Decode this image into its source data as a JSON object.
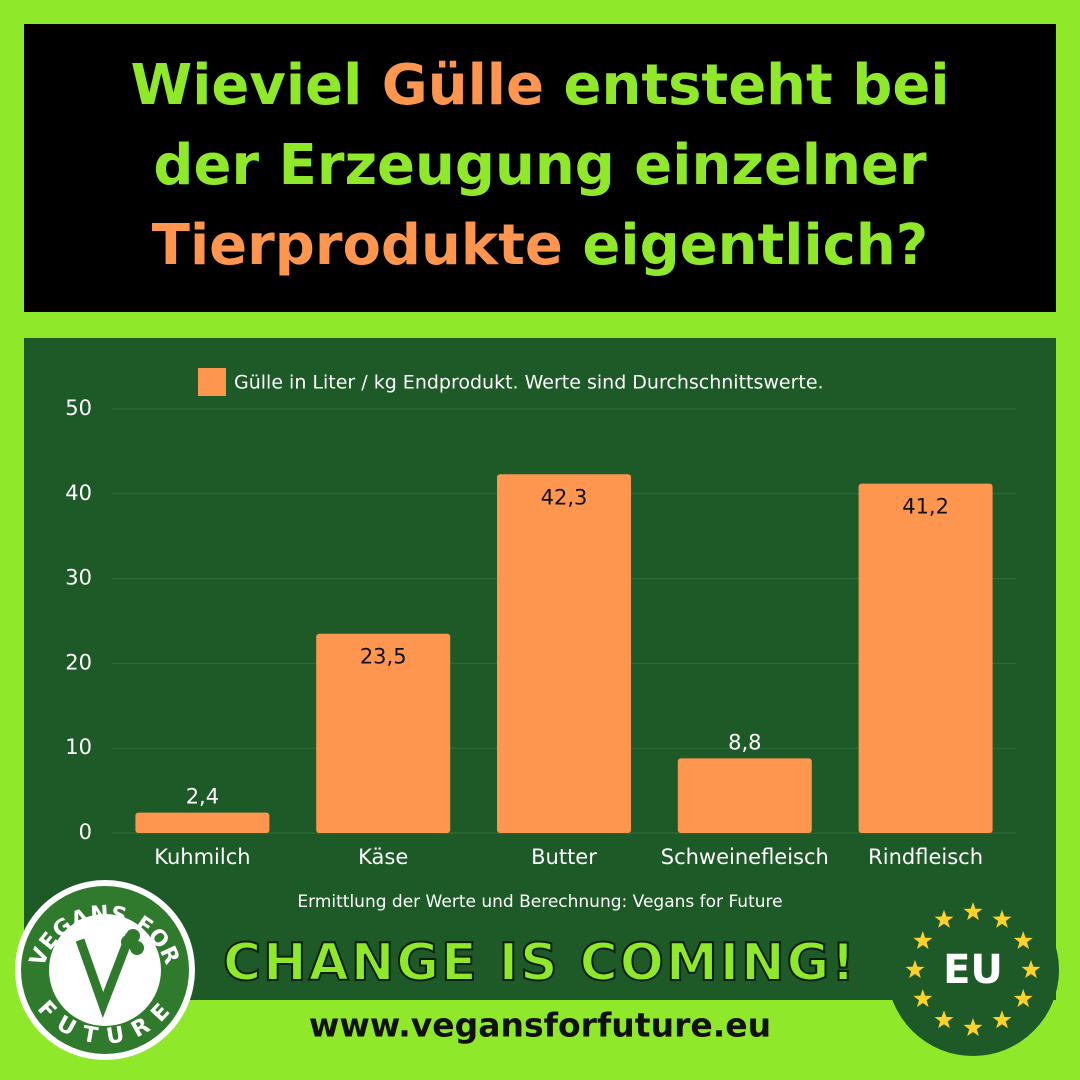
{
  "header": {
    "title_lines": [
      [
        {
          "text": "Wieviel",
          "color": "#8fe82a"
        },
        {
          "text": "Gülle",
          "color": "#ff9650"
        },
        {
          "text": "entsteht bei",
          "color": "#8fe82a"
        }
      ],
      [
        {
          "text": "der Erzeugung einzelner",
          "color": "#8fe82a"
        }
      ],
      [
        {
          "text": "Tierprodukte",
          "color": "#ff9650"
        },
        {
          "text": "eigentlich?",
          "color": "#8fe82a"
        }
      ]
    ]
  },
  "chart_data": {
    "type": "bar",
    "categories": [
      "Kuhmilch",
      "Käse",
      "Butter",
      "Schweinefleisch",
      "Rindfleisch"
    ],
    "series": [
      {
        "name": "Gülle in Liter / kg Endprodukt. Werte sind Durchschnittswerte.",
        "color": "#ff9650",
        "values": [
          2.4,
          23.5,
          42.3,
          8.8,
          41.2
        ],
        "value_labels": [
          "2,4",
          "23,5",
          "42,3",
          "8,8",
          "41,2"
        ]
      }
    ],
    "ylim": [
      0,
      50
    ],
    "yticks": [
      0,
      10,
      20,
      30,
      40,
      50
    ],
    "grid": true,
    "note": "Ermittlung der Werte und Berechnung: Vegans for Future"
  },
  "footer": {
    "slogan": "CHANGE IS COMING!",
    "url": "www.vegansforfuture.eu"
  },
  "logos": {
    "left_top": "VEGANS FOR",
    "left_bottom": "FUTURE",
    "right": "EU"
  }
}
